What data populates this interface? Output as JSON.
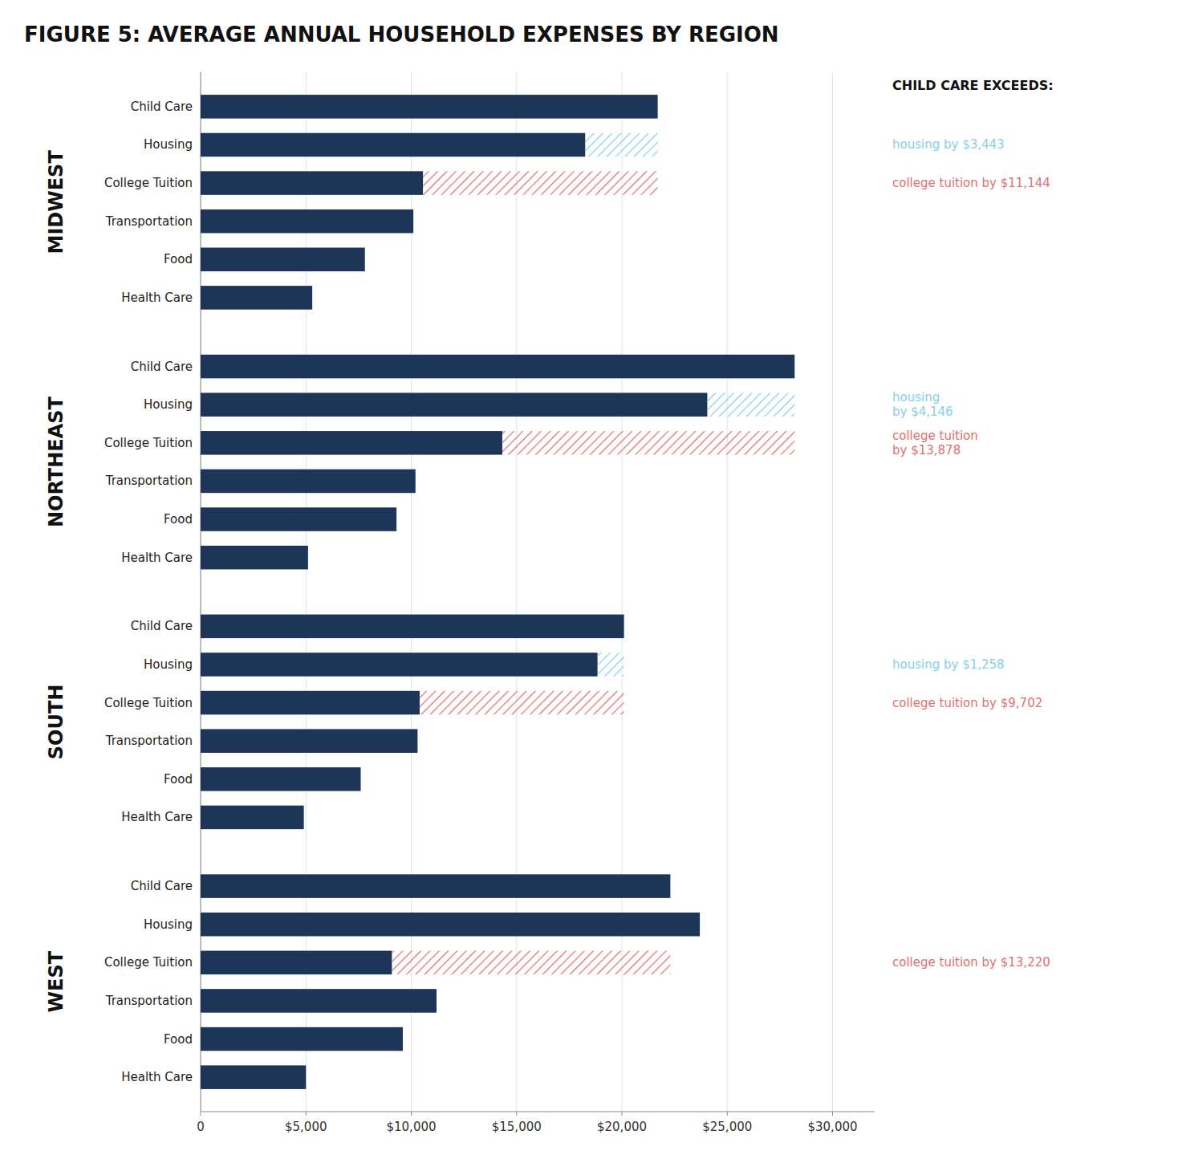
{
  "chart_data": {
    "type": "bar",
    "orientation": "horizontal",
    "title": "FIGURE 5: AVERAGE ANNUAL HOUSEHOLD EXPENSES BY REGION",
    "color": "#1d3557",
    "grid": true,
    "categories": [
      "Child Care",
      "Housing",
      "College Tuition",
      "Transportation",
      "Food",
      "Health Care"
    ],
    "series": [
      {
        "name": "MIDWEST",
        "values": [
          21700,
          18257,
          10556,
          10100,
          7800,
          5300
        ],
        "annotations": [
          {
            "category": "Child Care",
            "text": "CHILD CARE EXCEEDS:"
          },
          {
            "category": "Housing",
            "text": "housing by $3,443",
            "color": "#87CEEB"
          },
          {
            "category": "College Tuition",
            "text": "college tuition by $11,144",
            "color": "#E07070"
          }
        ]
      },
      {
        "name": "NORTHEAST",
        "values": [
          28200,
          24054,
          14322,
          10200,
          9300,
          5100
        ],
        "annotations": [
          {
            "category": "Housing",
            "text": "housing\nby $4,146",
            "color": "#87CEEB"
          },
          {
            "category": "College Tuition",
            "text": "college tuition\nby $13,878",
            "color": "#E07070"
          }
        ]
      },
      {
        "name": "SOUTH",
        "values": [
          20100,
          18842,
          10398,
          10300,
          7600,
          4900
        ],
        "annotations": [
          {
            "category": "Housing",
            "text": "housing by $1,258",
            "color": "#87CEEB"
          },
          {
            "category": "College Tuition",
            "text": "college tuition by $9,702",
            "color": "#E07070"
          }
        ]
      },
      {
        "name": "WEST",
        "values": [
          22300,
          23700,
          9080,
          11200,
          9600,
          5000
        ],
        "annotations": [
          {
            "category": "College Tuition",
            "text": "college tuition by $13,220",
            "color": "#E07070"
          }
        ]
      }
    ],
    "xlim": [
      0,
      32000
    ],
    "xticks": [
      0,
      {
        "value": 5000,
        "label": "$5,000"
      },
      {
        "value": 10000,
        "label": "$10,000"
      },
      {
        "value": 15000,
        "label": "$15,000"
      },
      {
        "value": 20000,
        "label": "$20,000"
      },
      {
        "value": 25000,
        "label": "$25,000"
      },
      {
        "value": 30000,
        "label": "$30,000"
      }
    ]
  }
}
